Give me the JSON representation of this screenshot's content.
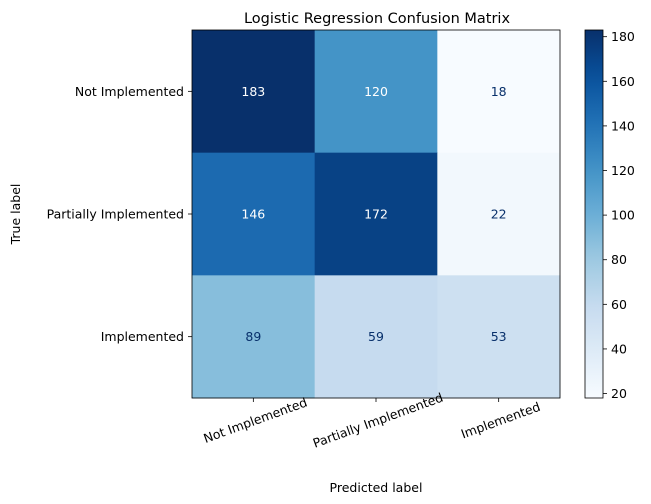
{
  "chart_data": {
    "type": "heatmap",
    "title": "Logistic Regression Confusion Matrix",
    "xlabel": "Predicted label",
    "ylabel": "True label",
    "x_categories": [
      "Not Implemented",
      "Partially Implemented",
      "Implemented"
    ],
    "y_categories": [
      "Not Implemented",
      "Partially Implemented",
      "Implemented"
    ],
    "values": [
      [
        183,
        120,
        18
      ],
      [
        146,
        172,
        22
      ],
      [
        89,
        59,
        53
      ]
    ],
    "colormap": "Blues",
    "colorbar": {
      "min": 18,
      "max": 183,
      "ticks": [
        20,
        40,
        60,
        80,
        100,
        120,
        140,
        160,
        180
      ]
    },
    "x_tick_rotation_deg": 20
  }
}
